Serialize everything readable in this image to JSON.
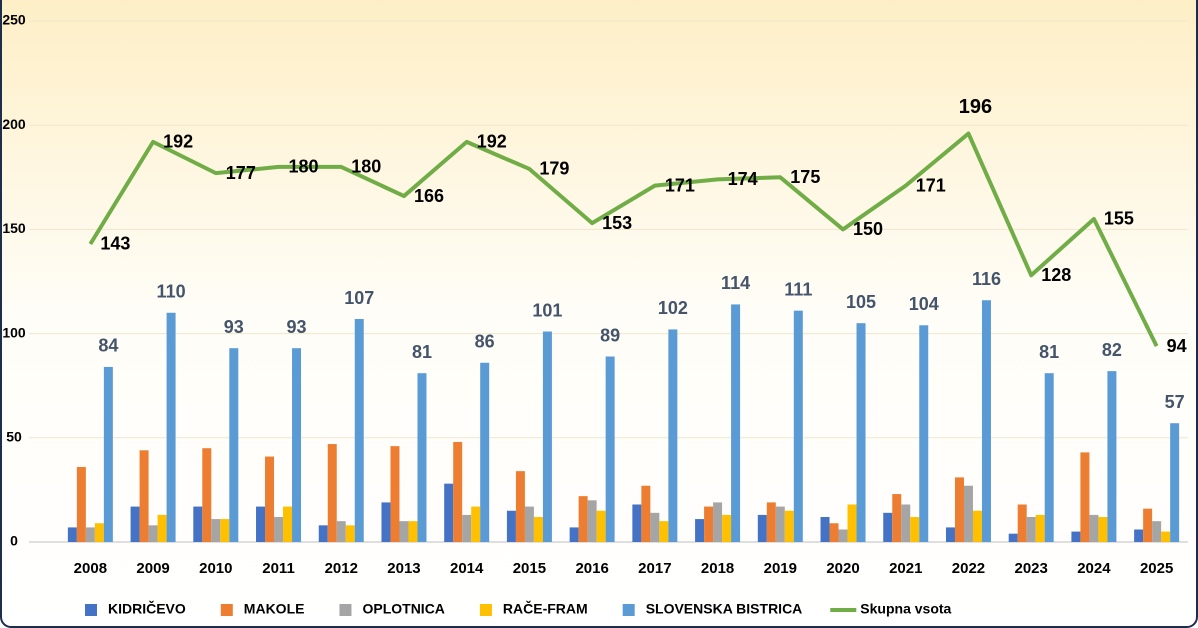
{
  "chart_data": {
    "type": "bar_line",
    "categories": [
      "2008",
      "2009",
      "2010",
      "2011",
      "2012",
      "2013",
      "2014",
      "2015",
      "2016",
      "2017",
      "2018",
      "2019",
      "2020",
      "2021",
      "2022",
      "2023",
      "2024",
      "2025"
    ],
    "series": [
      {
        "name": "KIDRIČEVO",
        "color": "#4472c4",
        "values": [
          7,
          17,
          17,
          17,
          8,
          19,
          28,
          15,
          7,
          18,
          11,
          13,
          12,
          14,
          7,
          4,
          5,
          6
        ]
      },
      {
        "name": "MAKOLE",
        "color": "#ed7d31",
        "values": [
          36,
          44,
          45,
          41,
          47,
          46,
          48,
          34,
          22,
          27,
          17,
          19,
          9,
          23,
          31,
          18,
          43,
          16
        ]
      },
      {
        "name": "OPLOTNICA",
        "color": "#a5a5a5",
        "values": [
          7,
          8,
          11,
          12,
          10,
          10,
          13,
          17,
          20,
          14,
          19,
          17,
          6,
          18,
          27,
          12,
          13,
          10
        ]
      },
      {
        "name": "RAČE-FRAM",
        "color": "#ffc000",
        "values": [
          9,
          13,
          11,
          17,
          8,
          10,
          17,
          12,
          15,
          10,
          13,
          15,
          18,
          12,
          15,
          13,
          12,
          5
        ]
      },
      {
        "name": "SLOVENSKA BISTRICA",
        "color": "#5b9bd5",
        "values": [
          84,
          110,
          93,
          93,
          107,
          81,
          86,
          101,
          89,
          102,
          114,
          111,
          105,
          104,
          116,
          81,
          82,
          57
        ],
        "labels": true
      },
      {
        "name": "Skupna vsota",
        "color": "#70ad47",
        "type": "line",
        "values": [
          143,
          192,
          177,
          180,
          180,
          166,
          192,
          179,
          153,
          171,
          174,
          175,
          150,
          171,
          196,
          128,
          155,
          94
        ],
        "labels": true
      }
    ],
    "ylim": [
      0,
      250
    ],
    "yticks": [
      0,
      50,
      100,
      150,
      200,
      250
    ],
    "grid": true,
    "legend": "bottom"
  }
}
